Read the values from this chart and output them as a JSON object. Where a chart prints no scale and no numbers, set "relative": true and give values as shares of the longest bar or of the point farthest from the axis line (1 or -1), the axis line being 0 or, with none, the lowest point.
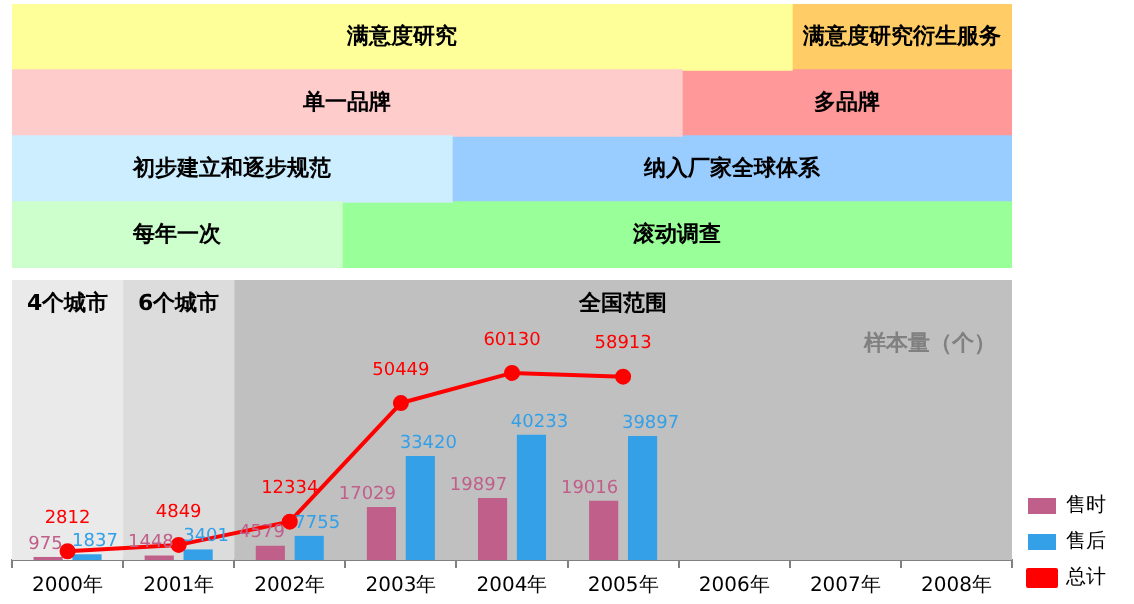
{
  "chart_data": [
    {
      "type": "bar",
      "orientation": "horizontal",
      "relative": true,
      "stacked": true,
      "categories": [
        null,
        null,
        null,
        null
      ],
      "annotations": [
        "满意度研究",
        "满意度研究衍生服务",
        "单一品牌",
        "多品牌",
        "初步建立和逐步规范",
        "纳入厂家全球体系",
        "每年一次",
        "滚动调查"
      ],
      "series": [
        {
          "colors": [
            "#ffff99",
            "#ffcccc",
            "#cceeff",
            "#ccffcc"
          ],
          "values": [
            0.78,
            0.67,
            0.44,
            0.33
          ]
        },
        {
          "colors": [
            "#ffcc66",
            "#ff9999",
            "#99ccff",
            "#99ff99"
          ],
          "values": [
            0.22,
            0.33,
            0.56,
            0.67
          ]
        }
      ]
    },
    {
      "type": "bar",
      "ylabel": "样本量（个）",
      "categories": [
        "2000年",
        "2001年",
        "2002年",
        "2003年",
        "2004年",
        "2005年",
        "2006年",
        "2007年",
        "2008年"
      ],
      "series": [
        {
          "name": "售时",
          "color": "#c0608a",
          "values": [
            975,
            1448,
            4579,
            17029,
            19897,
            19016,
            null,
            null,
            null
          ]
        },
        {
          "name": "售后",
          "color": "#33a0e8",
          "values": [
            1837,
            3401,
            7755,
            33420,
            40233,
            39897,
            null,
            null,
            null
          ]
        },
        {
          "name": "总计",
          "type": "line",
          "color": "#ff0000",
          "values": [
            2812,
            4849,
            12334,
            50449,
            60130,
            58913,
            null,
            null,
            null
          ]
        }
      ],
      "bands": [
        {
          "axis": "x",
          "from": "2000年",
          "to": "2000年",
          "label": "4个城市",
          "color": "#eaeaea"
        },
        {
          "axis": "x",
          "from": "2001年",
          "to": "2001年",
          "label": "6个城市",
          "color": "#dcdcdc"
        },
        {
          "axis": "x",
          "from": "2002年",
          "to": "2008年",
          "label": "全国范围",
          "color": "#c0c0c0"
        }
      ],
      "data_labels": true,
      "legend": "right",
      "marker": "circle",
      "grid": false,
      "tick_labels": "x"
    }
  ]
}
